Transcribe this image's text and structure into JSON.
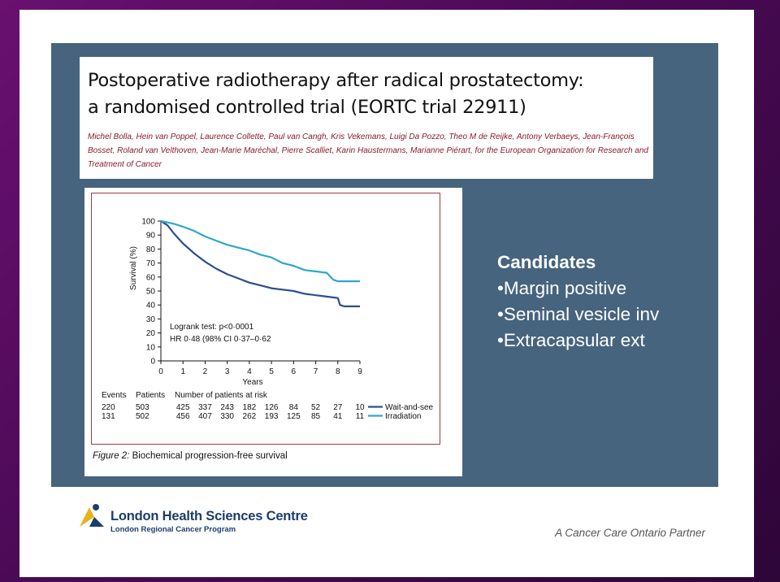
{
  "paper": {
    "title_line1": "Postoperative radiotherapy after radical prostatectomy:",
    "title_line2": "a randomised controlled trial (EORTC trial 22911)",
    "authors": "Michel Bolla, Hein van Poppel, Laurence Collette, Paul van Cangh, Kris Vekemans, Luigi Da Pozzo, Theo M de Reijke, Antony Verbaeys, Jean-François Bosset, Roland van Velthoven, Jean-Marie Maréchal, Pierre Scalliet, Karin Haustermans, Marianne Piérart, for the European Organization for Research and Treatment of Cancer"
  },
  "figure": {
    "caption_num": "Figure 2:",
    "caption_text": " Biochemical progression-free survival"
  },
  "candidates": {
    "title": "Candidates",
    "items": [
      "•Margin positive",
      "•Seminal vesicle inv",
      "•Extracapsular ext"
    ]
  },
  "footer": {
    "org_name": "London Health Sciences Centre",
    "org_sub": "London Regional Cancer Program",
    "partner": "A Cancer Care Ontario Partner"
  },
  "colors": {
    "panel": "#46647d",
    "wait_and_see": "#2a4f8e",
    "irradiation": "#2ea7c9",
    "frame": "#6a1070"
  },
  "chart_data": {
    "type": "line",
    "title": "",
    "xlabel": "Years",
    "ylabel": "Survival (%)",
    "xlim": [
      0,
      9
    ],
    "ylim": [
      0,
      100
    ],
    "x_ticks": [
      "0",
      "1",
      "2",
      "3",
      "4",
      "5",
      "6",
      "7",
      "8",
      "9"
    ],
    "y_ticks": [
      "0",
      "10",
      "20",
      "30",
      "40",
      "50",
      "60",
      "70",
      "80",
      "90",
      "100"
    ],
    "annotation_line1": "Logrank test: p<0·0001",
    "annotation_line2": "HR 0·48 (98% CI 0·37–0·62",
    "series": [
      {
        "name": "Wait-and-see",
        "x": [
          0,
          0.3,
          0.6,
          1,
          1.5,
          2,
          2.5,
          3,
          3.5,
          4,
          4.5,
          5,
          5.5,
          6,
          6.5,
          7,
          7.5,
          8,
          8.1,
          8.3,
          9
        ],
        "y": [
          100,
          97,
          91,
          84,
          77,
          71,
          66,
          62,
          59,
          56,
          54,
          52,
          51,
          50,
          48,
          47,
          46,
          45,
          40,
          39,
          39
        ]
      },
      {
        "name": "Irradiation",
        "x": [
          0,
          0.3,
          0.6,
          1,
          1.5,
          2,
          2.5,
          3,
          3.5,
          4,
          4.5,
          5,
          5.5,
          6,
          6.5,
          7,
          7.5,
          7.8,
          8,
          8.5,
          9
        ],
        "y": [
          100,
          99,
          98,
          96,
          93,
          89,
          86,
          83,
          81,
          79,
          76,
          74,
          70,
          68,
          65,
          64,
          63,
          58,
          57,
          57,
          57
        ]
      }
    ],
    "risk_table": {
      "header_events": "Events",
      "header_patients": "Patients",
      "header_number": "Number of patients at risk",
      "rows": [
        {
          "events": "220",
          "patients": "503",
          "counts": [
            "425",
            "337",
            "243",
            "182",
            "126",
            "84",
            "52",
            "27",
            "10"
          ],
          "label": "Wait-and-see"
        },
        {
          "events": "131",
          "patients": "502",
          "counts": [
            "456",
            "407",
            "330",
            "262",
            "193",
            "125",
            "85",
            "41",
            "11"
          ],
          "label": "Irradiation"
        }
      ]
    }
  }
}
